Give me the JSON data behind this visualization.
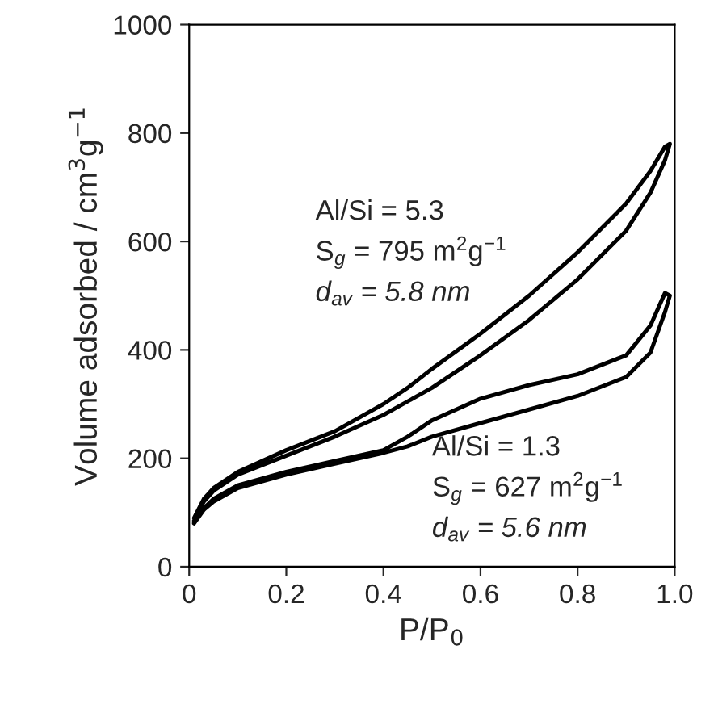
{
  "chart_data": {
    "type": "line",
    "xlabel": "P/P$_{0}$",
    "ylabel": "Volume adsorbed / cm$^{3}$g$^{−1}$",
    "xlim": [
      0,
      1
    ],
    "ylim": [
      0,
      1000
    ],
    "xticks": [
      0,
      0.2,
      0.4,
      0.6,
      0.8,
      {
        "value": 1,
        "label": "1.0"
      }
    ],
    "yticks": [
      0,
      200,
      400,
      600,
      800,
      1000
    ],
    "grid": false,
    "marker": "none",
    "line_style": "solid",
    "series": [
      {
        "color": "#000000",
        "x": [
          0.01,
          0.03,
          0.05,
          0.1,
          0.2,
          0.3,
          0.4,
          0.5,
          0.6,
          0.7,
          0.8,
          0.9,
          0.95,
          0.98,
          0.99,
          0.98,
          0.95,
          0.9,
          0.8,
          0.7,
          0.6,
          0.5,
          0.45,
          0.4,
          0.3,
          0.2,
          0.1,
          0.05,
          0.03,
          0.01
        ],
        "values": [
          85,
          120,
          140,
          170,
          205,
          240,
          280,
          330,
          390,
          455,
          530,
          620,
          690,
          750,
          780,
          775,
          730,
          670,
          580,
          500,
          430,
          365,
          330,
          300,
          250,
          215,
          175,
          145,
          125,
          90
        ]
      },
      {
        "color": "#000000",
        "x": [
          0.01,
          0.03,
          0.05,
          0.1,
          0.2,
          0.3,
          0.4,
          0.45,
          0.5,
          0.6,
          0.7,
          0.8,
          0.9,
          0.95,
          0.98,
          0.99,
          0.98,
          0.95,
          0.9,
          0.8,
          0.7,
          0.6,
          0.5,
          0.45,
          0.4,
          0.3,
          0.2,
          0.1,
          0.05,
          0.03,
          0.01
        ],
        "values": [
          80,
          105,
          120,
          145,
          170,
          190,
          210,
          222,
          240,
          265,
          290,
          315,
          350,
          395,
          470,
          500,
          505,
          445,
          390,
          355,
          335,
          310,
          270,
          240,
          215,
          195,
          175,
          150,
          125,
          108,
          82
        ]
      }
    ],
    "annotations": [
      "Al/Si = 5.3",
      "S$_{g}$ = 795 m$^{2}$g$^{−1}$",
      "d$_{av}$ = 5.8 nm",
      "Al/Si = 1.3",
      "S$_{g}$ = 627 m$^{2}$g$^{−1}$",
      "d$_{av}$ = 5.6 nm"
    ]
  }
}
